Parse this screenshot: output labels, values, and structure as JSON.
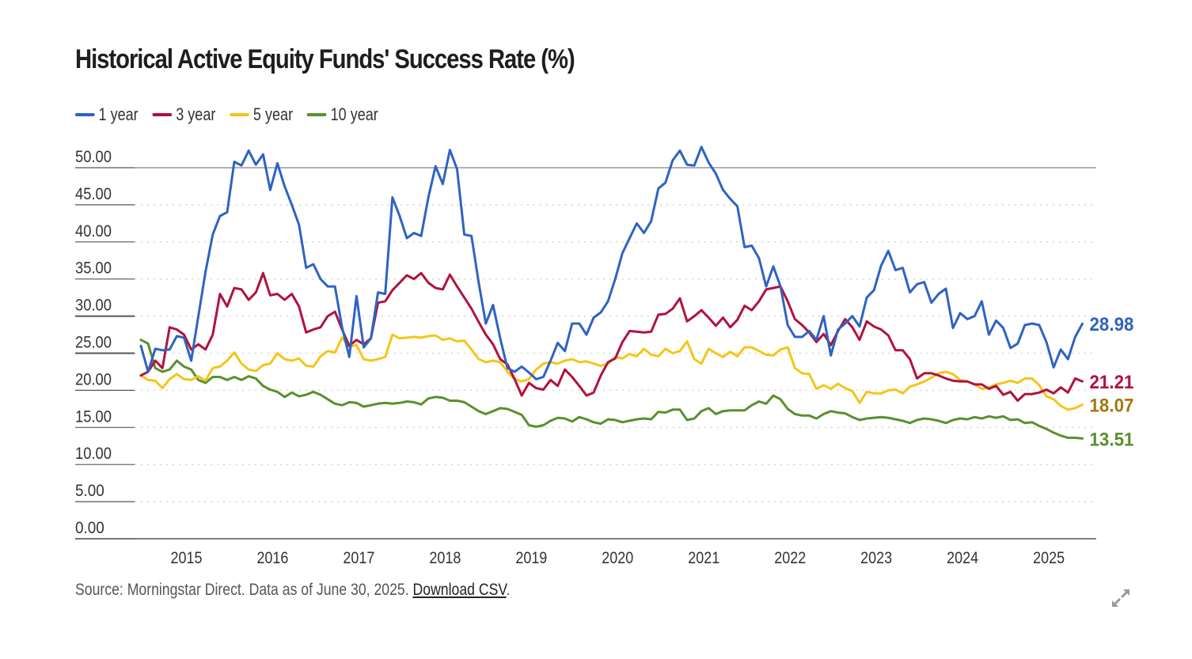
{
  "chart_data": {
    "type": "line",
    "title": "Historical Active Equity Funds' Success Rate (%)",
    "xlabel": "",
    "ylabel": "",
    "ylim": [
      0,
      50
    ],
    "yticks": [
      "0.00",
      "5.00",
      "10.00",
      "15.00",
      "20.00",
      "25.00",
      "30.00",
      "35.00",
      "40.00",
      "45.00",
      "50.00"
    ],
    "ytick_values": [
      0,
      5,
      10,
      15,
      20,
      25,
      30,
      35,
      40,
      45,
      50
    ],
    "xticks": [
      "2015",
      "2016",
      "2017",
      "2018",
      "2019",
      "2020",
      "2021",
      "2022",
      "2023",
      "2024",
      "2025"
    ],
    "x_start": "2014-07",
    "x_end": "2025-06",
    "x_frequency": "monthly",
    "grid": true,
    "legend_position": "top-left",
    "series": [
      {
        "name": "1 year",
        "color": "#2f63c0",
        "end_label": "28.98",
        "values": [
          26.0,
          22.5,
          25.6,
          25.4,
          25.5,
          27.3,
          27.1,
          24.0,
          30.0,
          36.0,
          41.0,
          43.5,
          44.0,
          50.8,
          50.3,
          52.3,
          50.4,
          51.8,
          47.0,
          50.6,
          47.5,
          45.0,
          42.3,
          36.5,
          37.0,
          35.0,
          34.0,
          34.0,
          28.5,
          24.5,
          32.7,
          25.8,
          27.0,
          33.2,
          33.0,
          46.0,
          43.5,
          40.5,
          41.2,
          40.8,
          46.0,
          50.2,
          47.8,
          52.4,
          49.8,
          41.0,
          40.8,
          34.5,
          29.0,
          31.5,
          27.0,
          23.0,
          22.5,
          23.2,
          22.4,
          21.5,
          21.8,
          24.0,
          26.4,
          25.3,
          29.0,
          29.0,
          27.5,
          29.8,
          30.5,
          32.0,
          35.0,
          38.5,
          40.5,
          42.5,
          41.2,
          42.8,
          47.2,
          48.0,
          51.0,
          52.3,
          50.4,
          50.3,
          52.8,
          50.7,
          49.2,
          47.0,
          45.8,
          44.8,
          39.3,
          39.5,
          37.8,
          34.0,
          36.7,
          34.0,
          28.8,
          27.2,
          27.2,
          28.0,
          26.8,
          30.0,
          24.7,
          28.2,
          29.0,
          30.0,
          28.6,
          32.5,
          33.5,
          36.8,
          38.8,
          36.2,
          36.5,
          33.2,
          34.3,
          34.6,
          31.8,
          33.0,
          33.7,
          28.4,
          30.4,
          29.6,
          30.0,
          32.0,
          27.5,
          29.4,
          28.4,
          25.7,
          26.3,
          28.8,
          29.0,
          28.8,
          26.5,
          23.1,
          25.5,
          24.2,
          27.2,
          28.98
        ]
      },
      {
        "name": "3 year",
        "color": "#b0123e",
        "end_label": "21.21",
        "values": [
          22.0,
          22.5,
          24.0,
          23.0,
          28.5,
          28.2,
          27.5,
          25.5,
          26.2,
          25.5,
          27.5,
          33.0,
          31.3,
          33.8,
          33.6,
          32.2,
          33.2,
          35.8,
          32.8,
          33.0,
          32.2,
          33.0,
          31.3,
          27.8,
          28.2,
          28.5,
          30.0,
          30.6,
          28.2,
          26.0,
          26.8,
          26.2,
          27.0,
          31.8,
          32.0,
          33.5,
          34.5,
          35.5,
          35.0,
          35.8,
          34.5,
          33.8,
          33.6,
          35.6,
          34.0,
          32.5,
          31.0,
          29.2,
          27.5,
          26.2,
          24.2,
          23.5,
          21.5,
          19.3,
          21.0,
          20.3,
          20.1,
          21.4,
          20.6,
          22.8,
          21.8,
          20.6,
          19.3,
          19.7,
          22.0,
          23.8,
          24.3,
          26.5,
          28.0,
          27.9,
          27.8,
          27.9,
          30.2,
          30.3,
          31.0,
          32.4,
          29.3,
          30.0,
          30.8,
          29.8,
          28.7,
          29.8,
          28.5,
          29.5,
          31.4,
          30.8,
          32.0,
          33.6,
          33.8,
          34.0,
          32.0,
          29.6,
          28.8,
          27.8,
          26.5,
          27.6,
          26.1,
          28.0,
          29.6,
          28.5,
          26.8,
          29.3,
          28.6,
          28.2,
          27.4,
          25.4,
          25.4,
          24.2,
          21.6,
          22.3,
          22.3,
          22.0,
          21.6,
          21.3,
          21.2,
          21.2,
          20.8,
          20.8,
          20.2,
          20.6,
          19.4,
          19.8,
          18.6,
          19.5,
          19.5,
          19.7,
          20.1,
          19.6,
          20.4,
          19.7,
          21.6,
          21.21
        ]
      },
      {
        "name": "5 year",
        "color": "#f5c518",
        "end_label": "18.07",
        "values": [
          22.0,
          21.4,
          21.3,
          20.3,
          21.5,
          22.2,
          21.5,
          21.4,
          21.9,
          21.3,
          23.0,
          23.2,
          24.0,
          25.1,
          23.6,
          22.8,
          22.6,
          23.4,
          23.6,
          25.0,
          24.2,
          24.0,
          24.3,
          23.3,
          23.2,
          24.6,
          25.3,
          25.1,
          27.1,
          25.9,
          26.1,
          24.2,
          24.0,
          24.2,
          24.5,
          27.5,
          27.0,
          27.1,
          27.2,
          27.1,
          27.3,
          27.4,
          26.8,
          27.0,
          26.6,
          26.7,
          25.5,
          24.2,
          23.8,
          24.0,
          23.8,
          22.5,
          21.5,
          21.2,
          21.5,
          22.8,
          23.6,
          23.8,
          23.6,
          24.0,
          24.2,
          23.8,
          23.9,
          23.6,
          23.3,
          23.6,
          24.5,
          24.3,
          24.9,
          24.6,
          25.6,
          24.8,
          24.6,
          25.6,
          25.0,
          25.3,
          26.6,
          24.2,
          23.6,
          25.6,
          25.0,
          24.5,
          25.2,
          24.6,
          25.8,
          25.8,
          25.3,
          24.8,
          24.7,
          25.5,
          25.8,
          23.0,
          22.3,
          22.2,
          20.2,
          20.7,
          20.2,
          20.9,
          20.3,
          19.9,
          18.3,
          19.8,
          19.6,
          19.6,
          20.0,
          20.1,
          19.6,
          20.5,
          20.8,
          21.2,
          21.7,
          22.3,
          22.5,
          22.2,
          21.4,
          21.2,
          20.8,
          20.2,
          20.4,
          20.8,
          21.0,
          21.3,
          21.0,
          21.6,
          21.6,
          20.7,
          19.2,
          18.8,
          17.9,
          17.4,
          17.6,
          18.07
        ]
      },
      {
        "name": "10 year",
        "color": "#5a8f2e",
        "end_label": "13.51",
        "values": [
          26.8,
          26.3,
          23.0,
          22.5,
          22.8,
          24.0,
          23.2,
          22.8,
          21.4,
          21.0,
          21.8,
          21.8,
          21.4,
          21.8,
          21.4,
          21.9,
          21.6,
          20.6,
          20.1,
          19.8,
          19.1,
          19.7,
          19.2,
          19.4,
          19.8,
          19.4,
          18.8,
          18.2,
          18.0,
          18.4,
          18.3,
          17.8,
          18.0,
          18.2,
          18.3,
          18.2,
          18.3,
          18.5,
          18.4,
          18.1,
          18.9,
          19.1,
          19.0,
          18.6,
          18.6,
          18.4,
          17.8,
          17.2,
          16.8,
          17.2,
          17.6,
          17.5,
          17.1,
          16.7,
          15.3,
          15.1,
          15.3,
          15.9,
          16.3,
          16.2,
          15.8,
          16.4,
          16.1,
          15.7,
          15.5,
          16.1,
          16.0,
          15.7,
          15.9,
          16.1,
          16.2,
          16.1,
          17.1,
          17.0,
          17.4,
          17.4,
          16.0,
          16.2,
          17.2,
          17.6,
          16.8,
          17.2,
          17.3,
          17.3,
          17.3,
          18.0,
          18.5,
          18.2,
          19.3,
          18.8,
          17.5,
          16.8,
          16.6,
          16.6,
          16.2,
          16.8,
          17.2,
          17.0,
          16.9,
          16.4,
          16.0,
          16.2,
          16.3,
          16.4,
          16.3,
          16.1,
          15.9,
          15.6,
          16.0,
          16.2,
          16.1,
          15.9,
          15.6,
          16.0,
          16.2,
          16.1,
          16.4,
          16.2,
          16.5,
          16.3,
          16.5,
          16.0,
          16.1,
          15.6,
          15.7,
          15.2,
          14.8,
          14.3,
          13.9,
          13.6,
          13.6,
          13.51
        ]
      }
    ]
  },
  "source": {
    "text": "Source: Morningstar Direct. Data as of June 30, 2025. ",
    "link_label": "Download CSV",
    "trailing": "."
  },
  "icons": {
    "expand": "expand-arrows-icon"
  }
}
